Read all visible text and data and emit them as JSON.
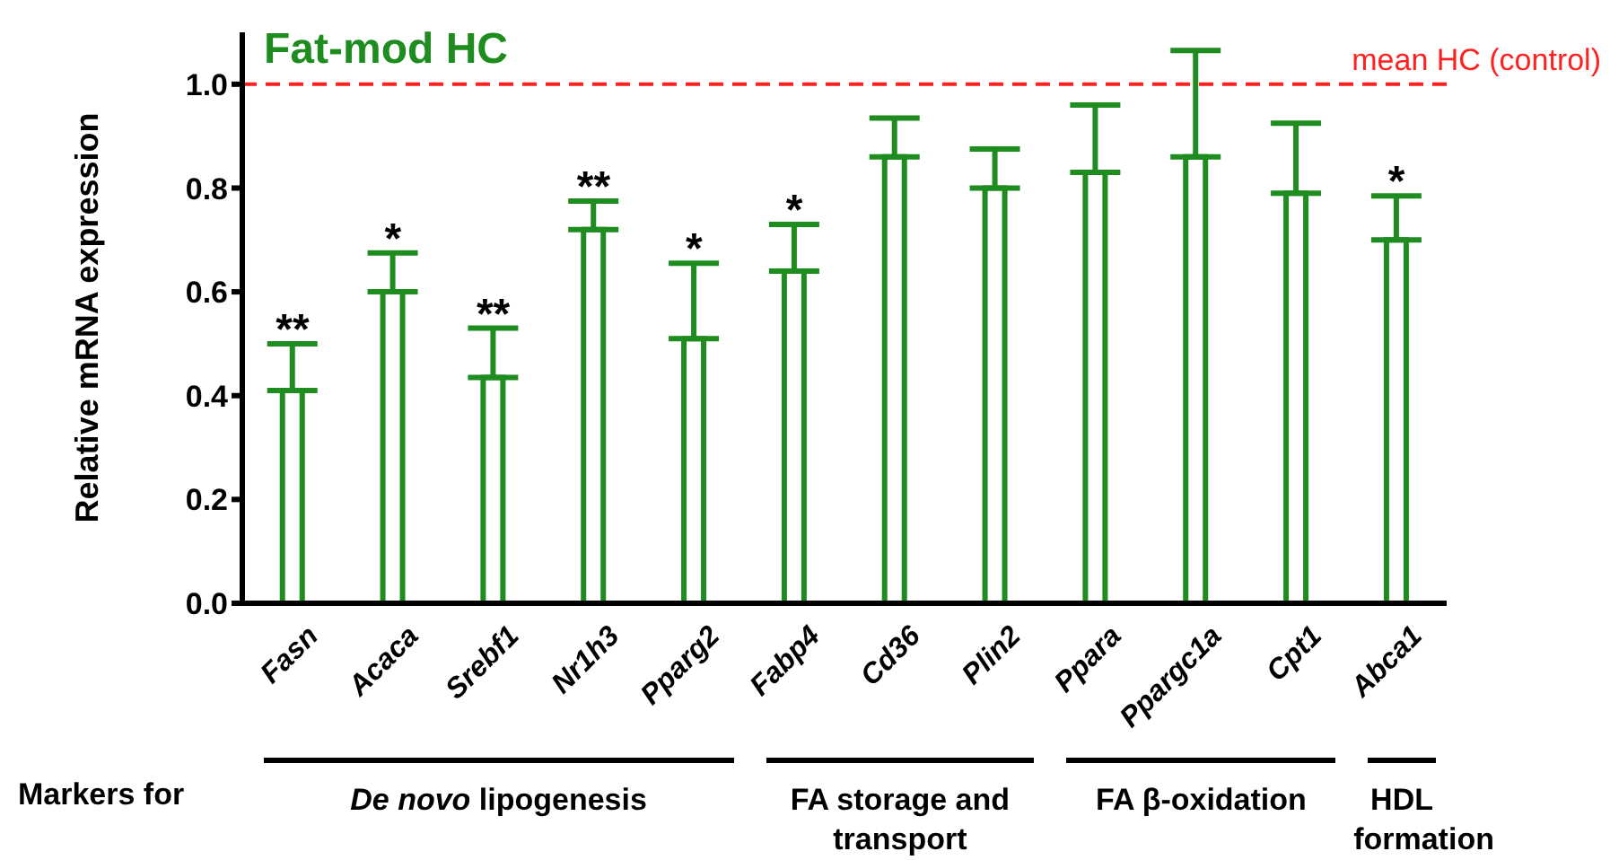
{
  "chart_data": {
    "type": "bar",
    "title": "Fat-mod HC",
    "ylabel": "Relative mRNA expression",
    "categories": [
      "Fasn",
      "Acaca",
      "Srebf1",
      "Nr1h3",
      "Pparg2",
      "Fabp4",
      "Cd36",
      "Plin2",
      "Ppara",
      "Ppargc1a",
      "Cpt1",
      "Abca1"
    ],
    "values": [
      0.41,
      0.6,
      0.435,
      0.72,
      0.51,
      0.64,
      0.86,
      0.8,
      0.83,
      0.86,
      0.79,
      0.7
    ],
    "errors": [
      [
        0.41,
        0.5
      ],
      [
        0.6,
        0.675
      ],
      [
        0.435,
        0.53
      ],
      [
        0.72,
        0.775
      ],
      [
        0.51,
        0.655
      ],
      [
        0.64,
        0.73
      ],
      [
        0.86,
        0.935
      ],
      [
        0.8,
        0.875
      ],
      [
        0.83,
        0.96
      ],
      [
        0.86,
        1.065
      ],
      [
        0.79,
        0.925
      ],
      [
        0.7,
        0.785
      ]
    ],
    "color": "#1e8c1e",
    "ylim": [
      0,
      1.1
    ],
    "yticks": [
      {
        "value": 0,
        "label": "0.0"
      },
      {
        "value": 0.2,
        "label": "0.2"
      },
      {
        "value": 0.4,
        "label": "0.4"
      },
      {
        "value": 0.6,
        "label": "0.6"
      },
      {
        "value": 0.8,
        "label": "0.8"
      },
      {
        "value": 1,
        "label": "1.0"
      }
    ],
    "grid": false,
    "legend": false,
    "ref_lines": [
      {
        "axis": "y",
        "value": 1,
        "label": "mean HC (control)",
        "color": "#ff2020",
        "line_style": "dashed"
      }
    ],
    "annotations": [
      {
        "text": "**",
        "x": "Fasn",
        "y": 0.5
      },
      {
        "text": "*",
        "x": "Acaca",
        "y": 0.675
      },
      {
        "text": "**",
        "x": "Srebf1",
        "y": 0.53
      },
      {
        "text": "**",
        "x": "Nr1h3",
        "y": 0.775
      },
      {
        "text": "*",
        "x": "Pparg2",
        "y": 0.655
      },
      {
        "text": "*",
        "x": "Fabp4",
        "y": 0.73
      },
      {
        "text": "*",
        "x": "Abca1",
        "y": 0.785
      },
      "Markers for",
      "De novo lipogenesis",
      "FA storage and transport",
      "FA β-oxidation",
      "HDL formation"
    ]
  }
}
